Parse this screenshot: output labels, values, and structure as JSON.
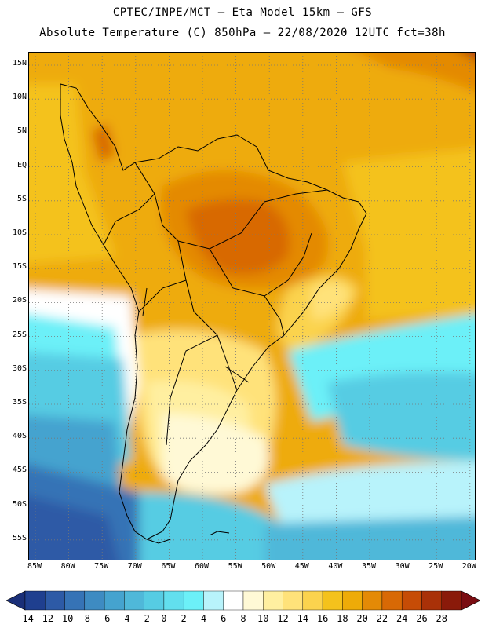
{
  "header": {
    "line1": "CPTEC/INPE/MCT –  Eta Model 15km – GFS",
    "line2": "Absolute Temperature (C) 850hPa – 22/08/2020 12UTC fct=38h"
  },
  "lat_labels": [
    "15N",
    "10N",
    "5N",
    "EQ",
    "5S",
    "10S",
    "15S",
    "20S",
    "25S",
    "30S",
    "35S",
    "40S",
    "45S",
    "50S",
    "55S"
  ],
  "lon_labels": [
    "85W",
    "80W",
    "75W",
    "70W",
    "65W",
    "60W",
    "55W",
    "50W",
    "45W",
    "40W",
    "35W",
    "30W",
    "25W",
    "20W"
  ],
  "colorbar": {
    "labels": [
      "-14",
      "-12",
      "-10",
      "-8",
      "-6",
      "-4",
      "-2",
      "0",
      "2",
      "4",
      "6",
      "8",
      "10",
      "12",
      "14",
      "16",
      "18",
      "20",
      "22",
      "24",
      "26",
      "28"
    ],
    "colors": [
      "#1f3f8f",
      "#2d5aa6",
      "#3673b6",
      "#3e8bc2",
      "#45a3cf",
      "#4fb8d9",
      "#56cce3",
      "#62dfee",
      "#6cf0f8",
      "#b8f3fb",
      "#ffffff",
      "#fff9d6",
      "#ffefa0",
      "#ffe27a",
      "#fbd34e",
      "#f4c21c",
      "#eeab08",
      "#e48a06",
      "#d86905",
      "#c64c06",
      "#a93108",
      "#8a1a0a"
    ],
    "under_color": "#1a2f78",
    "over_color": "#7a0d12"
  }
}
